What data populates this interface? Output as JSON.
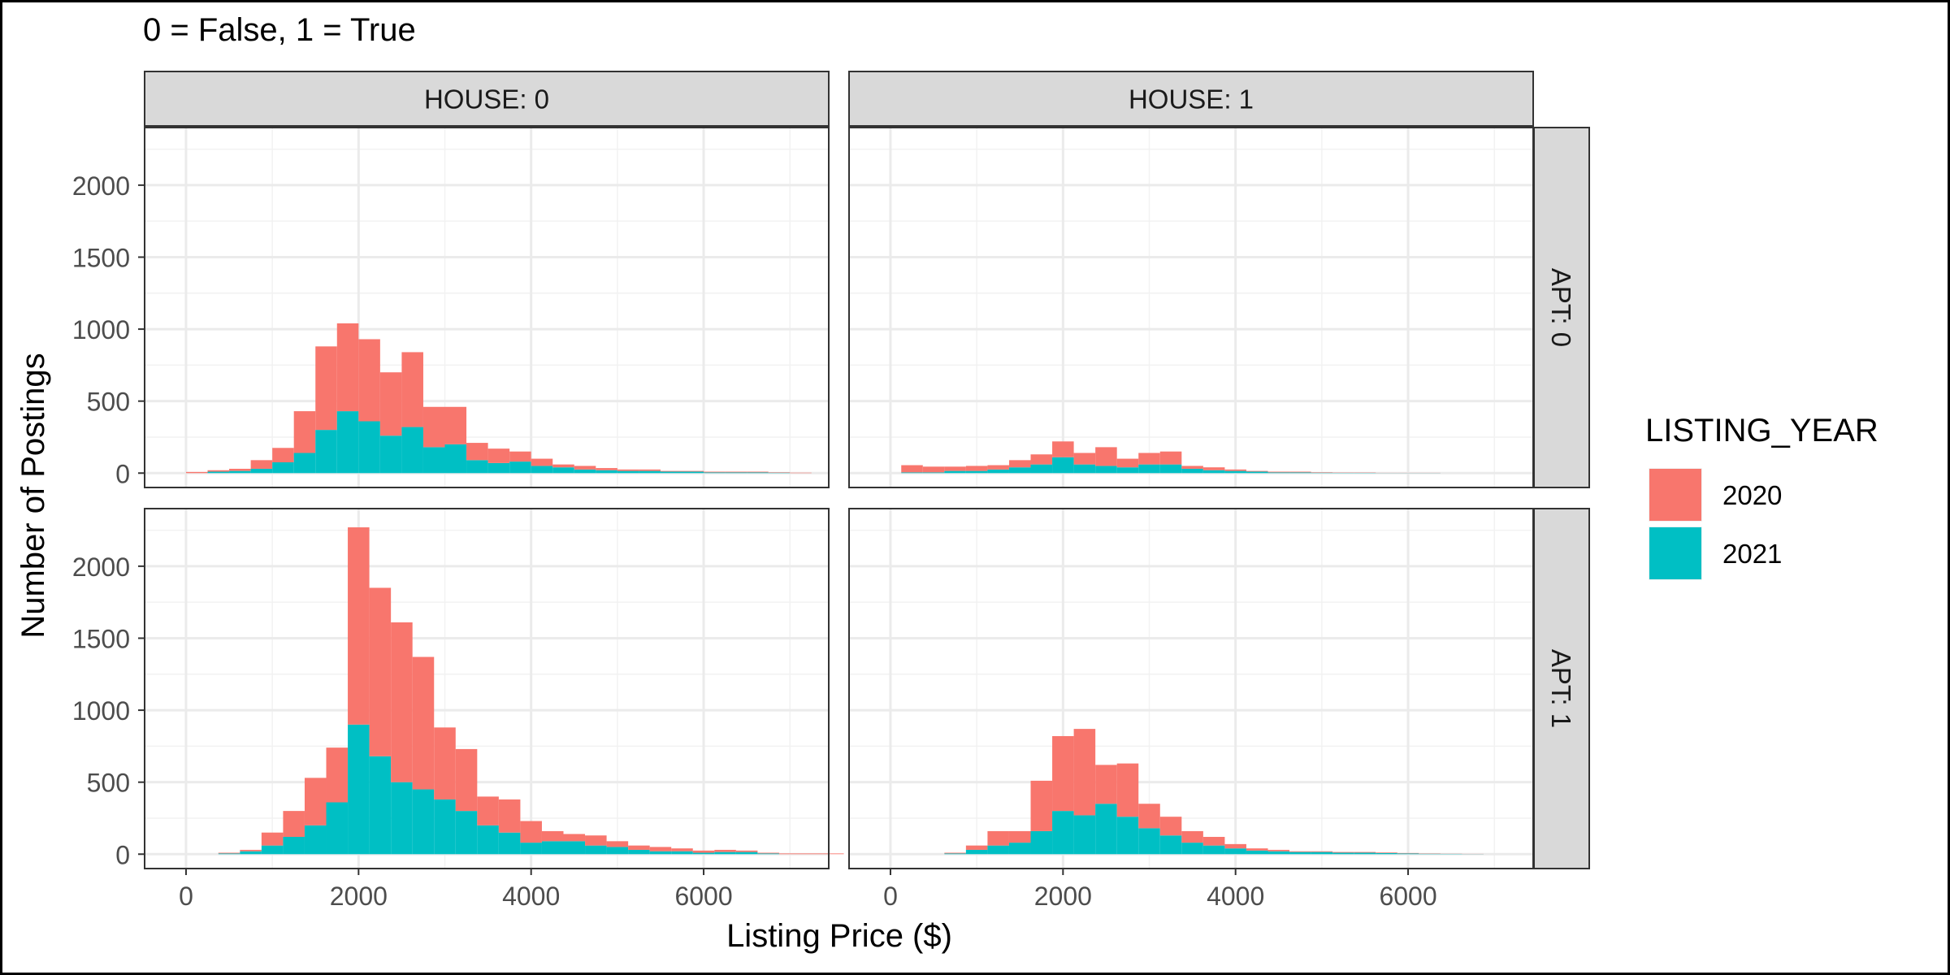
{
  "chart_data": {
    "type": "bar",
    "subtitle": "0 = False, 1 = True",
    "xlabel": "Listing Price ($)",
    "ylabel": "Number of Postings",
    "xlim": [
      -480,
      7450
    ],
    "ylim": [
      -100,
      2400
    ],
    "x_ticks": [
      0,
      2000,
      4000,
      6000
    ],
    "y_ticks": [
      0,
      500,
      1000,
      1500,
      2000
    ],
    "x_tick_labels": [
      "0",
      "2000",
      "4000",
      "6000"
    ],
    "y_tick_labels": [
      "0",
      "500",
      "1000",
      "1500",
      "2000"
    ],
    "bin_width": 250,
    "grid": true,
    "stacked": true,
    "legend": {
      "title": "LISTING_YEAR",
      "position": "right",
      "entries": [
        {
          "label": "2020",
          "color": "#F8766D"
        },
        {
          "label": "2021",
          "color": "#00BFC4"
        }
      ]
    },
    "facet_col_labels": [
      "HOUSE: 0",
      "HOUSE: 1"
    ],
    "facet_row_labels": [
      "APT: 0",
      "APT: 1"
    ],
    "panels": [
      {
        "row": 0,
        "col": 0,
        "bin_start": 0,
        "series": [
          {
            "name": "2021",
            "values": [
              0,
              10,
              15,
              30,
              75,
              140,
              300,
              430,
              360,
              260,
              320,
              180,
              200,
              90,
              70,
              80,
              50,
              40,
              25,
              20,
              15,
              15,
              10,
              10,
              5,
              5,
              5,
              3,
              0
            ]
          },
          {
            "name": "2020",
            "values": [
              8,
              10,
              15,
              60,
              100,
              290,
              580,
              610,
              570,
              440,
              520,
              280,
              260,
              120,
              100,
              70,
              50,
              20,
              25,
              15,
              10,
              10,
              5,
              5,
              5,
              5,
              5,
              3,
              3
            ]
          }
        ]
      },
      {
        "row": 0,
        "col": 1,
        "bin_start": 125,
        "series": [
          {
            "name": "2021",
            "values": [
              5,
              5,
              15,
              15,
              25,
              40,
              60,
              110,
              60,
              50,
              40,
              60,
              60,
              30,
              20,
              15,
              10,
              5,
              5,
              3,
              2,
              2,
              1,
              1,
              1,
              0,
              0,
              0,
              0
            ]
          },
          {
            "name": "2020",
            "values": [
              50,
              40,
              30,
              35,
              30,
              50,
              70,
              110,
              80,
              130,
              60,
              80,
              90,
              20,
              20,
              10,
              5,
              5,
              5,
              3,
              2,
              2,
              1,
              1,
              1,
              0,
              0,
              0,
              0
            ]
          }
        ]
      },
      {
        "row": 1,
        "col": 0,
        "bin_start": 125,
        "series": [
          {
            "name": "2021",
            "values": [
              0,
              5,
              20,
              60,
              120,
              200,
              360,
              900,
              680,
              500,
              450,
              380,
              300,
              200,
              150,
              80,
              90,
              90,
              60,
              50,
              30,
              20,
              20,
              10,
              15,
              15,
              5,
              0,
              0,
              0
            ]
          },
          {
            "name": "2020",
            "values": [
              0,
              5,
              10,
              90,
              180,
              330,
              380,
              1370,
              1170,
              1110,
              920,
              500,
              430,
              200,
              230,
              150,
              70,
              50,
              70,
              40,
              30,
              30,
              20,
              15,
              15,
              10,
              5,
              5,
              5,
              5
            ]
          }
        ]
      },
      {
        "row": 1,
        "col": 1,
        "bin_start": 125,
        "series": [
          {
            "name": "2021",
            "values": [
              0,
              0,
              5,
              30,
              60,
              80,
              160,
              300,
              270,
              350,
              260,
              180,
              130,
              80,
              60,
              40,
              25,
              20,
              15,
              15,
              10,
              10,
              8,
              5,
              3,
              2,
              1,
              0,
              0,
              0
            ]
          },
          {
            "name": "2020",
            "values": [
              0,
              0,
              5,
              30,
              100,
              80,
              350,
              520,
              600,
              270,
              370,
              170,
              130,
              80,
              60,
              30,
              15,
              10,
              5,
              5,
              5,
              5,
              4,
              3,
              2,
              1,
              1,
              0,
              0,
              0
            ]
          }
        ]
      }
    ]
  }
}
